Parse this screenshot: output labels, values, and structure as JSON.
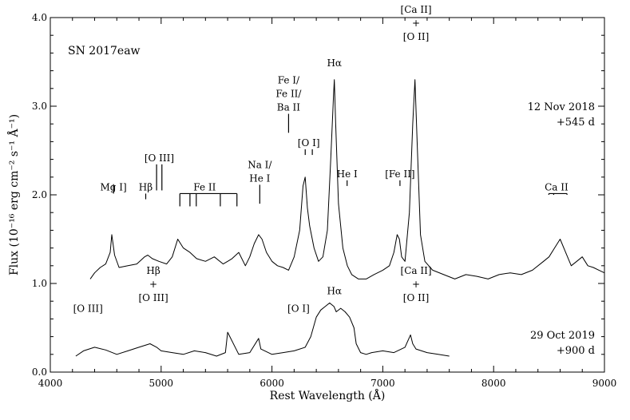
{
  "chart_data": {
    "type": "line",
    "title": "SN 2017eaw",
    "xlabel": "Rest Wavelength (Å)",
    "ylabel": "Flux (10⁻¹⁶ erg cm⁻² s⁻¹ Å⁻¹)",
    "xlim": [
      4000,
      9000
    ],
    "ylim": [
      0.0,
      4.0
    ],
    "x_ticks": [
      4000,
      5000,
      6000,
      7000,
      8000,
      9000
    ],
    "y_ticks": [
      "0.0",
      "1.0",
      "2.0",
      "3.0",
      "4.0"
    ],
    "grid": false,
    "series": [
      {
        "epoch": "12 Nov 2018",
        "phase": "+545 d",
        "x": [
          4360,
          4400,
          4450,
          4500,
          4540,
          4555,
          4580,
          4620,
          4700,
          4780,
          4850,
          4880,
          4920,
          4980,
          5050,
          5100,
          5150,
          5200,
          5260,
          5320,
          5400,
          5480,
          5560,
          5600,
          5640,
          5700,
          5760,
          5800,
          5840,
          5880,
          5910,
          5950,
          6000,
          6050,
          6100,
          6150,
          6200,
          6250,
          6280,
          6300,
          6320,
          6340,
          6380,
          6420,
          6460,
          6500,
          6530,
          6555,
          6563,
          6575,
          6600,
          6640,
          6680,
          6720,
          6780,
          6850,
          6920,
          7000,
          7060,
          7100,
          7130,
          7150,
          7170,
          7200,
          7240,
          7270,
          7290,
          7310,
          7340,
          7380,
          7450,
          7550,
          7650,
          7750,
          7850,
          7950,
          8050,
          8150,
          8250,
          8350,
          8450,
          8500,
          8550,
          8600,
          8650,
          8700,
          8750,
          8800,
          8850,
          8900,
          8950,
          9000
        ],
        "y": [
          1.05,
          1.12,
          1.18,
          1.22,
          1.35,
          1.55,
          1.32,
          1.18,
          1.2,
          1.22,
          1.3,
          1.32,
          1.28,
          1.25,
          1.22,
          1.3,
          1.5,
          1.4,
          1.35,
          1.28,
          1.25,
          1.3,
          1.22,
          1.25,
          1.28,
          1.35,
          1.2,
          1.3,
          1.45,
          1.55,
          1.5,
          1.35,
          1.25,
          1.2,
          1.18,
          1.15,
          1.3,
          1.6,
          2.1,
          2.2,
          1.85,
          1.65,
          1.4,
          1.25,
          1.3,
          1.6,
          2.4,
          3.1,
          3.3,
          2.8,
          1.9,
          1.4,
          1.2,
          1.1,
          1.05,
          1.05,
          1.1,
          1.15,
          1.2,
          1.35,
          1.55,
          1.5,
          1.3,
          1.25,
          1.8,
          2.8,
          3.3,
          2.6,
          1.55,
          1.25,
          1.15,
          1.1,
          1.05,
          1.1,
          1.08,
          1.05,
          1.1,
          1.12,
          1.1,
          1.15,
          1.25,
          1.3,
          1.4,
          1.5,
          1.35,
          1.2,
          1.25,
          1.3,
          1.2,
          1.18,
          1.15,
          1.12
        ]
      },
      {
        "epoch": "29 Oct 2019",
        "phase": "+900 d",
        "x": [
          4230,
          4300,
          4400,
          4500,
          4600,
          4700,
          4800,
          4900,
          4960,
          5000,
          5100,
          5200,
          5300,
          5400,
          5500,
          5580,
          5600,
          5700,
          5800,
          5880,
          5900,
          6000,
          6100,
          6200,
          6300,
          6350,
          6400,
          6440,
          6480,
          6520,
          6560,
          6580,
          6620,
          6660,
          6700,
          6740,
          6760,
          6800,
          6850,
          6900,
          7000,
          7100,
          7200,
          7250,
          7270,
          7300,
          7400,
          7500,
          7600
        ],
        "y": [
          0.18,
          0.24,
          0.28,
          0.25,
          0.2,
          0.24,
          0.28,
          0.32,
          0.28,
          0.24,
          0.22,
          0.2,
          0.24,
          0.22,
          0.18,
          0.22,
          0.45,
          0.2,
          0.22,
          0.38,
          0.26,
          0.2,
          0.22,
          0.24,
          0.28,
          0.4,
          0.62,
          0.7,
          0.74,
          0.78,
          0.74,
          0.68,
          0.72,
          0.68,
          0.62,
          0.5,
          0.32,
          0.22,
          0.2,
          0.22,
          0.24,
          0.22,
          0.28,
          0.42,
          0.32,
          0.26,
          0.22,
          0.2,
          0.18
        ]
      }
    ],
    "annotations": [
      {
        "label": [
          "Mg I]"
        ],
        "x": [
          4570
        ],
        "level": 2.12,
        "text_y": 2.05
      },
      {
        "label": [
          "Hβ"
        ],
        "x": [
          4861
        ],
        "level": 1.95,
        "text_y": 2.05
      },
      {
        "label": [
          "[O III]"
        ],
        "x": [
          4959,
          5007
        ],
        "level": 2.05,
        "text_y": 2.38
      },
      {
        "label": [
          "Fe II"
        ],
        "x": [
          5169,
          5260,
          5317,
          5534,
          5684
        ],
        "level": 1.87,
        "text_y": 2.05,
        "bracket": true
      },
      {
        "label": [
          "Na I/",
          "He I"
        ],
        "x": [
          5890
        ],
        "level": 1.9,
        "text_y": 2.15
      },
      {
        "label": [
          "Fe I/",
          "Fe II/",
          "Ba II"
        ],
        "x": [
          6150
        ],
        "level": 2.7,
        "text_y": 2.95
      },
      {
        "label": [
          "[O I]"
        ],
        "x": [
          6300,
          6364
        ],
        "level": 2.45,
        "text_y": 2.55
      },
      {
        "label": [
          "Hα"
        ],
        "x": [],
        "text_x": 6563,
        "text_y": 3.45
      },
      {
        "label": [
          "He I"
        ],
        "x": [
          6678
        ],
        "level": 2.1,
        "text_y": 2.2
      },
      {
        "label": [
          "[Fe II]"
        ],
        "x": [
          7155
        ],
        "level": 2.1,
        "text_y": 2.2
      },
      {
        "label": [
          "[Ca II]",
          "+",
          "[O II]"
        ],
        "x": [],
        "text_x": 7300,
        "text_y": 3.75
      },
      {
        "label": [
          "Ca II"
        ],
        "x": [
          8498,
          8542,
          8662
        ],
        "level": 2.0,
        "text_y": 2.05,
        "bracket": true
      },
      {
        "label": [
          "[O III]"
        ],
        "x": [],
        "text_x": 4340,
        "text_y": 0.68
      },
      {
        "label": [
          "Hβ",
          "+",
          "[O III]"
        ],
        "x": [],
        "text_x": 4930,
        "text_y": 0.8
      },
      {
        "label": [
          "[O I]"
        ],
        "x": [],
        "text_x": 6240,
        "text_y": 0.68
      },
      {
        "label": [
          "Hα"
        ],
        "x": [],
        "text_x": 6563,
        "text_y": 0.88
      },
      {
        "label": [
          "[Ca II]",
          "+",
          "[O II]"
        ],
        "x": [],
        "text_x": 7300,
        "text_y": 0.8
      }
    ]
  }
}
